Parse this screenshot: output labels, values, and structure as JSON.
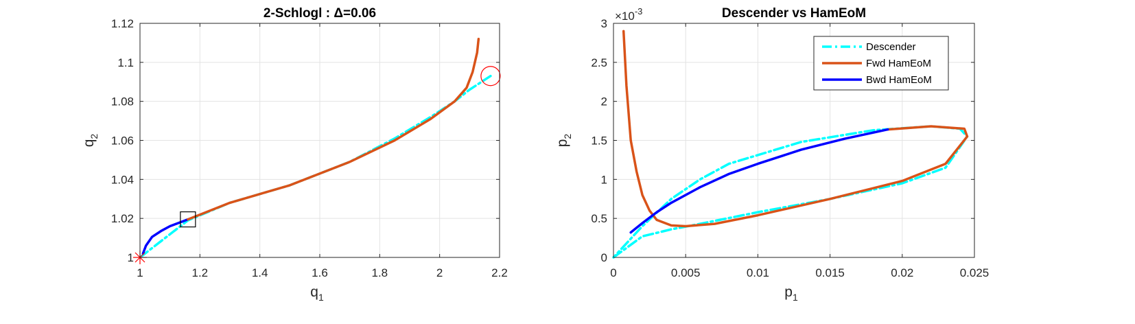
{
  "chart_data": [
    {
      "type": "line",
      "title": "2-Schlogl : Δ=0.06",
      "xlabel": "q",
      "xlabel_sub": "1",
      "ylabel": "q",
      "ylabel_sub": "2",
      "xlim": [
        1,
        2.2
      ],
      "ylim": [
        1,
        1.12
      ],
      "xticks": [
        1,
        1.2,
        1.4,
        1.6,
        1.8,
        2,
        2.2
      ],
      "xtick_labels": [
        "1",
        "1.2",
        "1.4",
        "1.6",
        "1.8",
        "2",
        "2.2"
      ],
      "yticks": [
        1,
        1.02,
        1.04,
        1.06,
        1.08,
        1.1,
        1.12
      ],
      "ytick_labels": [
        "1",
        "1.02",
        "1.04",
        "1.06",
        "1.08",
        "1.1",
        "1.12"
      ],
      "grid": true,
      "series": [
        {
          "color": "#00FFFF",
          "style": "dashdot",
          "x": [
            1.0,
            1.16,
            1.3,
            1.5,
            1.7,
            1.85,
            1.97,
            2.05,
            2.1,
            2.17
          ],
          "y": [
            1.0,
            1.019,
            1.028,
            1.037,
            1.049,
            1.061,
            1.072,
            1.08,
            1.086,
            1.093
          ]
        },
        {
          "color": "#0000FF",
          "style": "solid",
          "x": [
            1.01,
            1.02,
            1.04,
            1.07,
            1.1,
            1.16
          ],
          "y": [
            1.002,
            1.006,
            1.0105,
            1.0135,
            1.016,
            1.0195
          ]
        },
        {
          "color": "#D95319",
          "style": "solid",
          "x": [
            1.16,
            1.3,
            1.5,
            1.7,
            1.85,
            1.97,
            2.05,
            2.09,
            2.11,
            2.125,
            2.13
          ],
          "y": [
            1.0195,
            1.028,
            1.037,
            1.049,
            1.06,
            1.071,
            1.08,
            1.087,
            1.095,
            1.105,
            1.112
          ]
        }
      ],
      "markers": [
        {
          "kind": "asterisk",
          "color": "#FF0000",
          "x": 1.0,
          "y": 1.0
        },
        {
          "kind": "square",
          "color": "#000000",
          "x": 1.16,
          "y": 1.0195
        },
        {
          "kind": "circle",
          "color": "#FF0000",
          "x": 2.17,
          "y": 1.093
        }
      ]
    },
    {
      "type": "line",
      "title": "Descender vs HamEoM",
      "xlabel": "p",
      "xlabel_sub": "1",
      "ylabel": "p",
      "ylabel_sub": "2",
      "exponent_label": "×10",
      "exponent_power": "-3",
      "xlim": [
        0,
        0.025
      ],
      "ylim": [
        0,
        0.003
      ],
      "xticks": [
        0,
        0.005,
        0.01,
        0.015,
        0.02,
        0.025
      ],
      "xtick_labels": [
        "0",
        "0.005",
        "0.01",
        "0.015",
        "0.02",
        "0.025"
      ],
      "yticks": [
        0,
        0.0005,
        0.001,
        0.0015,
        0.002,
        0.0025,
        0.003
      ],
      "ytick_labels": [
        "0",
        "0.5",
        "1",
        "1.5",
        "2",
        "2.5",
        "3"
      ],
      "grid": true,
      "legend_position": "top-right",
      "series": [
        {
          "name": "Descender",
          "color": "#00FFFF",
          "style": "dashdot",
          "x": [
            0,
            0.002,
            0.004,
            0.006,
            0.01,
            0.015,
            0.02,
            0.023,
            0.0245,
            0.024,
            0.022,
            0.018,
            0.013,
            0.008,
            0.006,
            0.004,
            0.002,
            0
          ],
          "y": [
            0,
            0.00027,
            0.00036,
            0.00043,
            0.00058,
            0.00075,
            0.00095,
            0.00115,
            0.00155,
            0.00165,
            0.00168,
            0.00163,
            0.00148,
            0.0012,
            0.001,
            0.00075,
            0.0004,
            0
          ]
        },
        {
          "name": "Fwd HamEoM",
          "color": "#D95319",
          "style": "solid",
          "x": [
            0.0007,
            0.0009,
            0.0012,
            0.0016,
            0.002,
            0.0025,
            0.003,
            0.004,
            0.005,
            0.007,
            0.01,
            0.015,
            0.02,
            0.023,
            0.0245,
            0.0243,
            0.022,
            0.019
          ],
          "y": [
            0.0029,
            0.0022,
            0.0015,
            0.0011,
            0.0008,
            0.0006,
            0.00048,
            0.00041,
            0.0004,
            0.00043,
            0.00054,
            0.00075,
            0.00098,
            0.0012,
            0.00155,
            0.00165,
            0.00168,
            0.00164
          ]
        },
        {
          "name": "Bwd HamEoM",
          "color": "#0000FF",
          "style": "solid",
          "x": [
            0.0012,
            0.002,
            0.003,
            0.004,
            0.006,
            0.008,
            0.01,
            0.013,
            0.016,
            0.019
          ],
          "y": [
            0.00032,
            0.00044,
            0.00058,
            0.0007,
            0.0009,
            0.00107,
            0.0012,
            0.00138,
            0.00152,
            0.00164
          ]
        }
      ]
    }
  ]
}
